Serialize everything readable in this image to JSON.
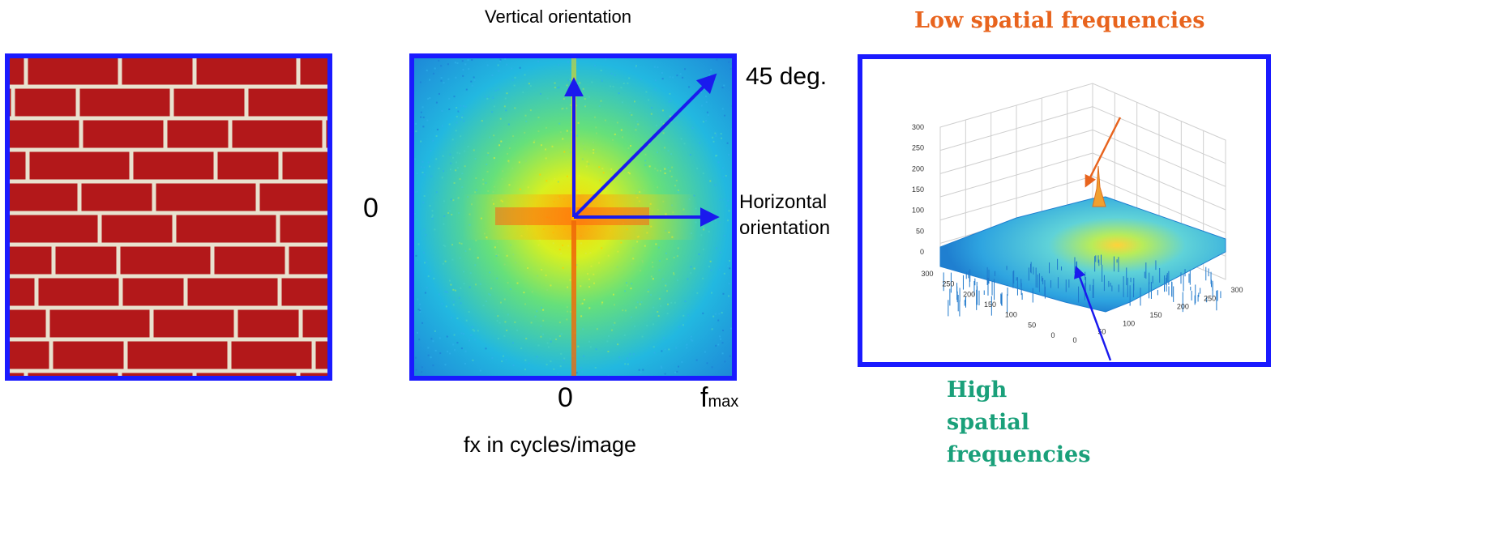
{
  "spectrum": {
    "top_label": "Vertical orientation",
    "diag_label": "45 deg.",
    "horiz_label_line1": "Horizontal",
    "horiz_label_line2": "orientation",
    "y_zero": "0",
    "x_zero": "0",
    "fmax_main": "f",
    "fmax_sub": "max",
    "x_caption": "fx in cycles/image"
  },
  "surface": {
    "low_label": "Low spatial frequencies",
    "high_label_1": "High",
    "high_label_2": "spatial",
    "high_label_3": "frequencies",
    "z_ticks": [
      "300",
      "250",
      "200",
      "150",
      "100",
      "50",
      "0"
    ],
    "left_ticks": [
      "300",
      "250",
      "200",
      "150",
      "100",
      "50",
      "0"
    ],
    "right_ticks": [
      "0",
      "50",
      "100",
      "150",
      "200",
      "250",
      "300"
    ]
  },
  "colors": {
    "frame": "#1a1aff",
    "brick": "#b3181a",
    "mortar": "#e8e2cf",
    "low_color": "#e8641e",
    "high_color": "#1aa07a",
    "arrow_blue": "#1a1aee",
    "arrow_orange": "#e8641e"
  }
}
